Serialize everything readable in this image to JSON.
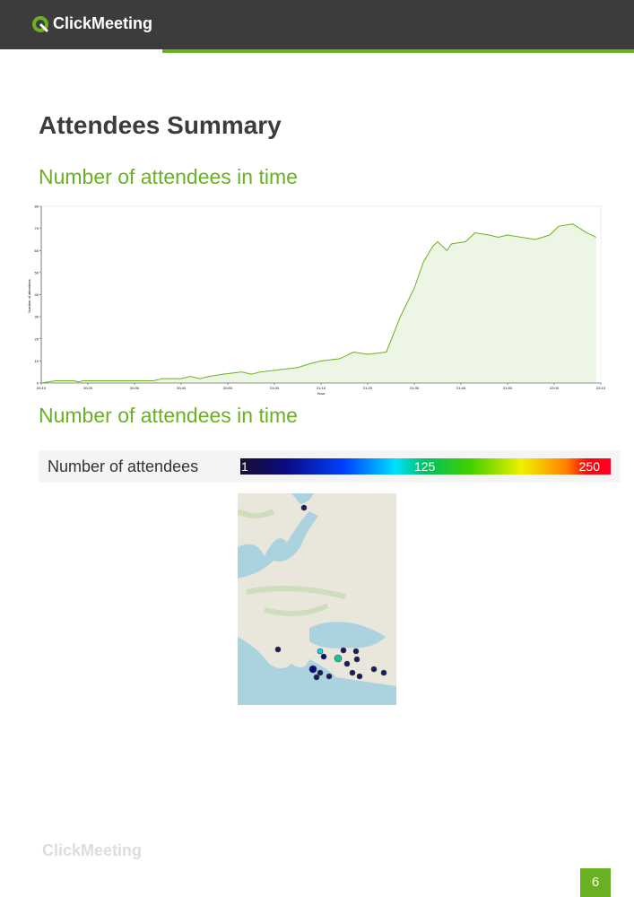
{
  "header": {
    "logo": "ClickMeeting"
  },
  "title": "Attendees Summary",
  "chart_heading": "Number of attendees in time",
  "chart_data": {
    "type": "area",
    "x_label": "Hour",
    "y_label": "Number of attendees",
    "color": "#6ab023",
    "x": [
      0,
      3,
      7,
      8,
      9,
      24,
      26,
      28,
      30,
      32,
      34,
      36,
      39,
      43,
      45,
      47,
      51,
      55,
      58,
      60,
      64,
      67,
      70,
      74,
      77,
      80,
      82,
      84,
      85,
      87,
      88,
      91,
      93,
      96,
      98,
      100,
      103,
      106,
      109,
      111,
      114,
      117,
      119
    ],
    "values": [
      0,
      1,
      1,
      0.5,
      1,
      1,
      2,
      2,
      2,
      3,
      2,
      3,
      4,
      5,
      4,
      5,
      6,
      7,
      9,
      10,
      11,
      14,
      13,
      14,
      30,
      43,
      55,
      62,
      64,
      60,
      63,
      64,
      68,
      67,
      66,
      67,
      66,
      65,
      67,
      71,
      72,
      68,
      66
    ],
    "xlim": [
      0,
      120
    ],
    "xticks": [
      {
        "value": 0,
        "label": "20:10"
      },
      {
        "value": 10,
        "label": "20:20"
      },
      {
        "value": 20,
        "label": "20:30"
      },
      {
        "value": 30,
        "label": "20:40"
      },
      {
        "value": 40,
        "label": "20:50"
      },
      {
        "value": 50,
        "label": "21:00"
      },
      {
        "value": 60,
        "label": "21:10"
      },
      {
        "value": 70,
        "label": "21:20"
      },
      {
        "value": 80,
        "label": "21:30"
      },
      {
        "value": 90,
        "label": "21:40"
      },
      {
        "value": 100,
        "label": "21:50"
      },
      {
        "value": 110,
        "label": "22:00"
      },
      {
        "value": 120,
        "label": "22:10"
      }
    ],
    "ylim": [
      0,
      80
    ],
    "yticks": [
      0,
      10,
      20,
      30,
      40,
      50,
      60,
      70,
      80
    ]
  },
  "map_heading": "Number of attendees in time",
  "map_legend": {
    "label": "Number of attendees",
    "scale": [
      1,
      125,
      250
    ],
    "range": [
      1,
      250
    ]
  },
  "footer": {
    "logo": "ClickMeeting",
    "page": 6
  }
}
